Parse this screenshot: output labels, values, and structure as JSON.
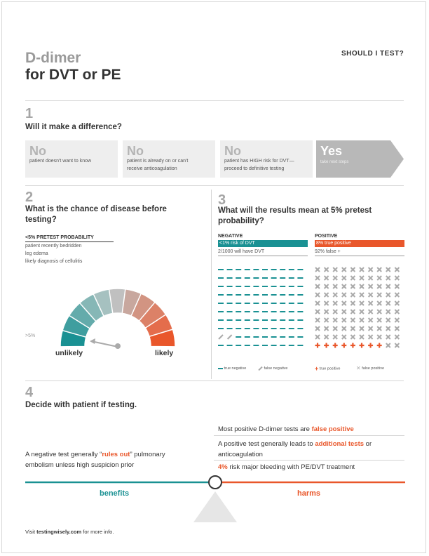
{
  "header": {
    "title_line1": "D-dimer",
    "title_line2": "for DVT or PE",
    "tag": "SHOULD I TEST?"
  },
  "section1": {
    "number": "1",
    "heading": "Will it make a difference?",
    "boxes": [
      {
        "answer": "No",
        "text": "patient doesn't want to know"
      },
      {
        "answer": "No",
        "text_line1": "patient is already on or can't",
        "text_line2": "receive anticoagulation"
      },
      {
        "answer": "No",
        "text_line1": "patient has HIGH risk for DVT—",
        "text_line2": "proceed to definitive testing"
      },
      {
        "answer": "Yes",
        "text": "take next steps"
      }
    ]
  },
  "section2": {
    "number": "2",
    "heading_line1": "What is the chance of disease before",
    "heading_line2": "testing?",
    "prob_label": "<5%  PRETEST PROBABILITY",
    "items": [
      "patient recently bedridden",
      "leg edema",
      "likely diagnosis of cellulitis"
    ],
    "gauge_marker": ">5%",
    "gauge_left": "unlikely",
    "gauge_right": "likely",
    "gauge_value_percent": 5
  },
  "section3": {
    "number": "3",
    "heading_line1": "What will the results mean at 5% pretest",
    "heading_line2": "probability?",
    "negative": {
      "label": "NEGATIVE",
      "bar": "<1% risk of DVT",
      "sub": "2/1000 will have DVT"
    },
    "positive": {
      "label": "POSITIVE",
      "bar": "8% true positive",
      "sub": "92% false +"
    },
    "legend": {
      "true_negative": "true negative",
      "false_negative": "false negative",
      "true_positive": "true positive",
      "false_positive": "false positive"
    }
  },
  "section4": {
    "number": "4",
    "heading": "Decide with patient if testing.",
    "left_pre": "A negative test generally “",
    "left_em": "rules out",
    "left_post": "” pulmonary",
    "left_line2": "embolism unless high suspicion prior",
    "harm1_pre": "Most positive D-dimer tests are ",
    "harm1_em": "false positive",
    "harm2_pre": "A positive test generally leads to ",
    "harm2_em": "additional tests",
    "harm2_post": " or",
    "harm2_line2": "anticoagulation",
    "harm3_em": "4%",
    "harm3_post": " risk major bleeding with PE/DVT treatment",
    "benefits": "benefits",
    "harms": "harms"
  },
  "footer": {
    "pre": "Visit ",
    "link": "testingwisely.com",
    "post": " for more info."
  },
  "colors": {
    "teal": "#1a9193",
    "orange": "#e9572b",
    "gray": "#c8c8c8"
  }
}
